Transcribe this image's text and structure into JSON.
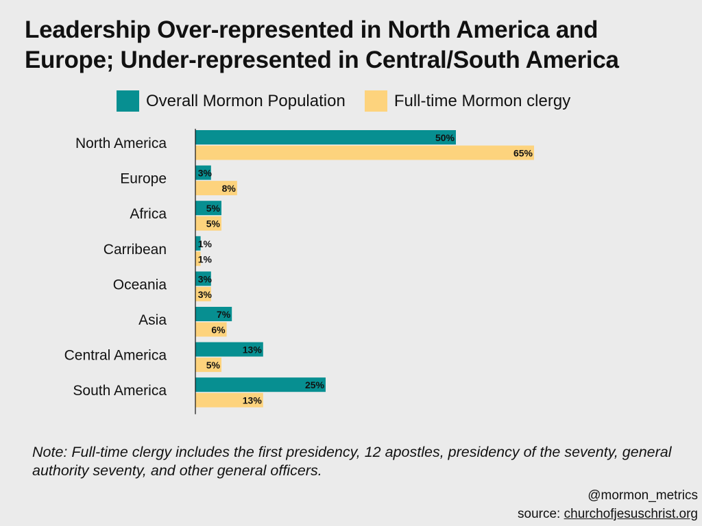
{
  "title": {
    "line1": "Leadership Over-represented in North America and",
    "line2": "Europe; Under-represented in Central/South America"
  },
  "colors": {
    "population": "#078f91",
    "clergy": "#fdd37d",
    "background": "#ebebeb"
  },
  "chart_data": {
    "type": "bar",
    "orientation": "horizontal",
    "title": "Leadership Over-represented in North America and Europe; Under-represented in Central/South America",
    "xlabel": "",
    "ylabel": "",
    "xlim": [
      0,
      65
    ],
    "grid": false,
    "legend_position": "top",
    "categories": [
      "North America",
      "Europe",
      "Africa",
      "Carribean",
      "Oceania",
      "Asia",
      "Central America",
      "South America"
    ],
    "series": [
      {
        "name": "Overall Mormon Population",
        "values": [
          50,
          3,
          5,
          1,
          3,
          7,
          13,
          25
        ],
        "labels": [
          "50%",
          "3%",
          "5%",
          "1%",
          "3%",
          "7%",
          "13%",
          "25%"
        ]
      },
      {
        "name": "Full-time Mormon clergy",
        "values": [
          65,
          8,
          5,
          1,
          3,
          6,
          5,
          13
        ],
        "labels": [
          "65%",
          "8%",
          "5%",
          "1%",
          "3%",
          "6%",
          "5%",
          "13%"
        ]
      }
    ]
  },
  "note": "Note: Full-time clergy includes the first presidency, 12 apostles, presidency of the seventy, general authority seventy, and other general officers.",
  "credit": {
    "handle": "@mormon_metrics",
    "source_prefix": "source: ",
    "source_link": "churchofjesuschrist.org"
  }
}
